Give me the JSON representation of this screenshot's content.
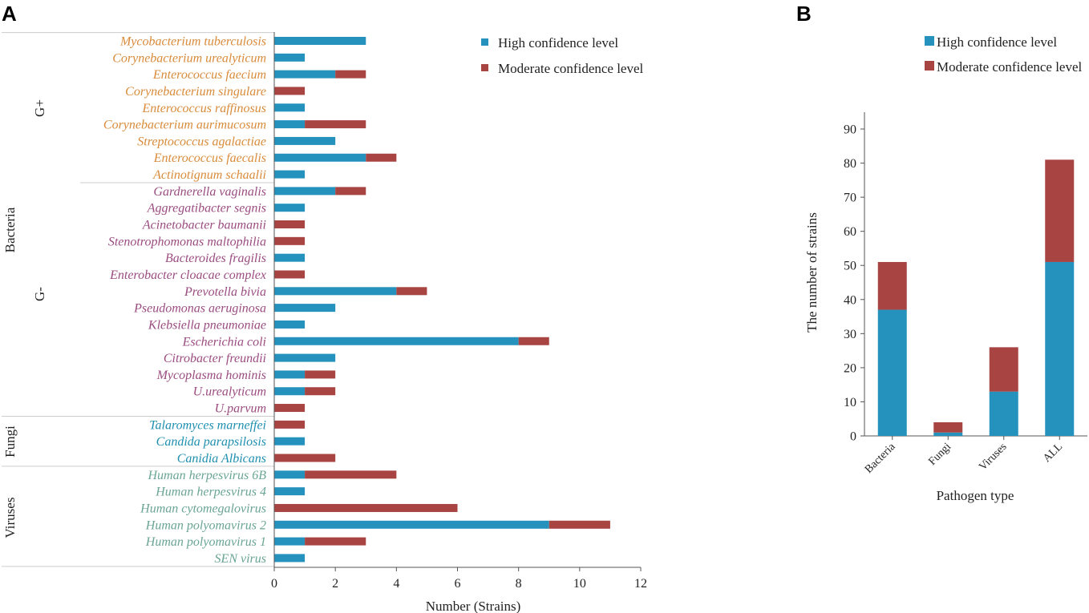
{
  "colors": {
    "high": "#2592bd",
    "moderate": "#a84442",
    "gram_positive": "#d98b3a",
    "gram_negative": "#9b4c80",
    "fungi": "#1f8fb0",
    "viruses": "#6aa595",
    "axis": "#555555"
  },
  "panels": {
    "a": "A",
    "b": "B"
  },
  "chart_data": [
    {
      "id": "A",
      "type": "bar",
      "orientation": "horizontal",
      "stacked": true,
      "xlabel": "Number (Strains)",
      "xlim": [
        0,
        12
      ],
      "xticks": [
        0,
        2,
        4,
        6,
        8,
        10,
        12
      ],
      "legend": {
        "position": "top-right",
        "entries": [
          "High confidence level",
          "Moderate confidence level"
        ]
      },
      "group_labels": {
        "bacteria": "Bacteria",
        "gram_positive": "G+",
        "gram_negative": "G-",
        "fungi": "Fungi",
        "viruses": "Viruses"
      },
      "categories": [
        {
          "name": "Mycobacterium tuberculosis",
          "group": "gram_positive",
          "high": 3,
          "moderate": 0
        },
        {
          "name": "Corynebacterium urealyticum",
          "group": "gram_positive",
          "high": 1,
          "moderate": 0
        },
        {
          "name": "Enterococcus faecium",
          "group": "gram_positive",
          "high": 2,
          "moderate": 1
        },
        {
          "name": "Corynebacterium singulare",
          "group": "gram_positive",
          "high": 0,
          "moderate": 1
        },
        {
          "name": "Enterococcus raffinosus",
          "group": "gram_positive",
          "high": 1,
          "moderate": 0
        },
        {
          "name": "Corynebacterium aurimucosum",
          "group": "gram_positive",
          "high": 1,
          "moderate": 2
        },
        {
          "name": "Streptococcus agalactiae",
          "group": "gram_positive",
          "high": 2,
          "moderate": 0
        },
        {
          "name": "Enterococcus faecalis",
          "group": "gram_positive",
          "high": 3,
          "moderate": 1
        },
        {
          "name": "Actinotignum schaalii",
          "group": "gram_positive",
          "high": 1,
          "moderate": 0
        },
        {
          "name": "Gardnerella vaginalis",
          "group": "gram_negative",
          "high": 2,
          "moderate": 1
        },
        {
          "name": "Aggregatibacter segnis",
          "group": "gram_negative",
          "high": 1,
          "moderate": 0
        },
        {
          "name": "Acinetobacter baumanii",
          "group": "gram_negative",
          "high": 0,
          "moderate": 1
        },
        {
          "name": "Stenotrophomonas maltophilia",
          "group": "gram_negative",
          "high": 0,
          "moderate": 1
        },
        {
          "name": "Bacteroides fragilis",
          "group": "gram_negative",
          "high": 1,
          "moderate": 0
        },
        {
          "name": "Enterobacter cloacae complex",
          "group": "gram_negative",
          "high": 0,
          "moderate": 1
        },
        {
          "name": "Prevotella bivia",
          "group": "gram_negative",
          "high": 4,
          "moderate": 1
        },
        {
          "name": "Pseudomonas aeruginosa",
          "group": "gram_negative",
          "high": 2,
          "moderate": 0
        },
        {
          "name": "Klebsiella pneumoniae",
          "group": "gram_negative",
          "high": 1,
          "moderate": 0
        },
        {
          "name": "Escherichia coli",
          "group": "gram_negative",
          "high": 8,
          "moderate": 1
        },
        {
          "name": "Citrobacter freundii",
          "group": "gram_negative",
          "high": 2,
          "moderate": 0
        },
        {
          "name": "Mycoplasma hominis",
          "group": "gram_negative",
          "high": 1,
          "moderate": 1
        },
        {
          "name": "U.urealyticum",
          "group": "gram_negative",
          "high": 1,
          "moderate": 1
        },
        {
          "name": "U.parvum",
          "group": "gram_negative",
          "high": 0,
          "moderate": 1
        },
        {
          "name": "Talaromyces marneffei",
          "group": "fungi",
          "high": 0,
          "moderate": 1
        },
        {
          "name": "Candida parapsilosis",
          "group": "fungi",
          "high": 1,
          "moderate": 0
        },
        {
          "name": "Canidia Albicans",
          "group": "fungi",
          "high": 0,
          "moderate": 2
        },
        {
          "name": "Human herpesvirus 6B",
          "group": "viruses",
          "high": 1,
          "moderate": 3
        },
        {
          "name": "Human herpesvirus 4",
          "group": "viruses",
          "high": 1,
          "moderate": 0
        },
        {
          "name": "Human cytomegalovirus",
          "group": "viruses",
          "high": 0,
          "moderate": 6
        },
        {
          "name": "Human polyomavirus 2",
          "group": "viruses",
          "high": 9,
          "moderate": 2
        },
        {
          "name": "Human polyomavirus 1",
          "group": "viruses",
          "high": 1,
          "moderate": 2
        },
        {
          "name": "SEN virus",
          "group": "viruses",
          "high": 1,
          "moderate": 0
        }
      ]
    },
    {
      "id": "B",
      "type": "bar",
      "orientation": "vertical",
      "stacked": true,
      "xlabel": "Pathogen type",
      "ylabel": "The number of strains",
      "ylim": [
        0,
        90
      ],
      "yticks": [
        0,
        10,
        20,
        30,
        40,
        50,
        60,
        70,
        80,
        90
      ],
      "legend": {
        "position": "top",
        "entries": [
          "High confidence level",
          "Moderate confidence level"
        ]
      },
      "categories": [
        "Bacteria",
        "Fungi",
        "Viruses",
        "ALL"
      ],
      "series": [
        {
          "name": "High confidence level",
          "values": [
            37,
            1,
            13,
            51
          ]
        },
        {
          "name": "Moderate confidence level",
          "values": [
            14,
            3,
            13,
            30
          ]
        }
      ]
    }
  ]
}
